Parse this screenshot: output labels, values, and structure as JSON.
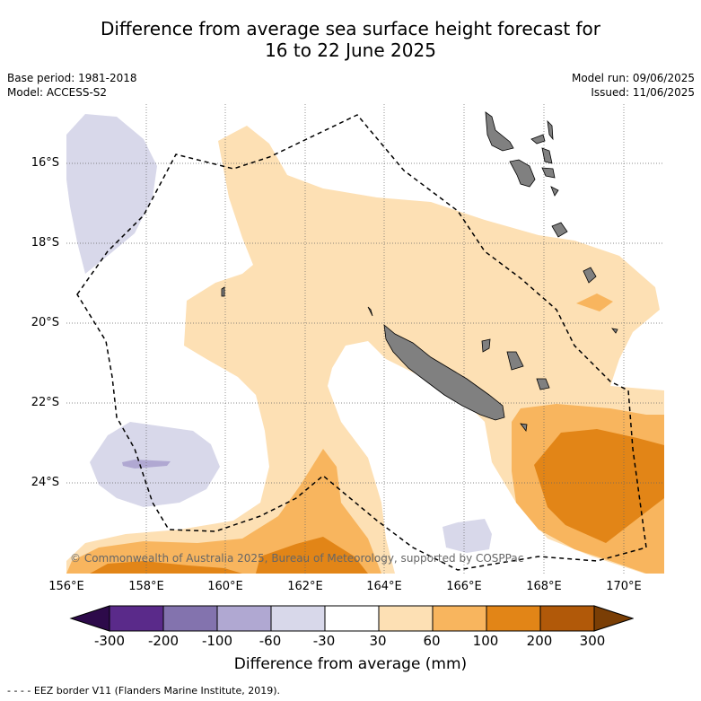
{
  "title_line1": "Difference from average sea surface height forecast for",
  "title_line2": "16 to 22 June 2025",
  "meta": {
    "base_period": "Base period: 1981-2018",
    "model": "Model: ACCESS-S2",
    "model_run": "Model run: 09/06/2025",
    "issued": "Issued: 11/06/2025"
  },
  "latitudes": [
    "16°S",
    "18°S",
    "20°S",
    "22°S",
    "24°S"
  ],
  "longitudes": [
    "156°E",
    "158°E",
    "160°E",
    "162°E",
    "164°E",
    "166°E",
    "168°E",
    "170°E"
  ],
  "copyright": "© Commonwealth of Australia 2025, Bureau of Meteorology, supported by COSPPac",
  "colorbar": {
    "ticks": [
      "-300",
      "-200",
      "-100",
      "-60",
      "-30",
      "30",
      "60",
      "100",
      "200",
      "300"
    ],
    "colors": [
      "#2d0a4a",
      "#5a2a8a",
      "#8373ae",
      "#b0a8d2",
      "#d8d8ea",
      "#ffffff",
      "#fde0b4",
      "#f8b55e",
      "#e28517",
      "#b15909",
      "#7a3e05"
    ],
    "label": "Difference from average (mm)"
  },
  "legend_footer": "- -  - -  EEZ border V11 (Flanders Marine Institute, 2019).",
  "palette": {
    "land": "#808080",
    "level_30_60": "#fde0b4",
    "level_60_100": "#f8b55e",
    "level_100_200": "#e28517",
    "level_neg_60_30": "#d8d8ea",
    "level_neg_100_60": "#b0a8d2"
  }
}
